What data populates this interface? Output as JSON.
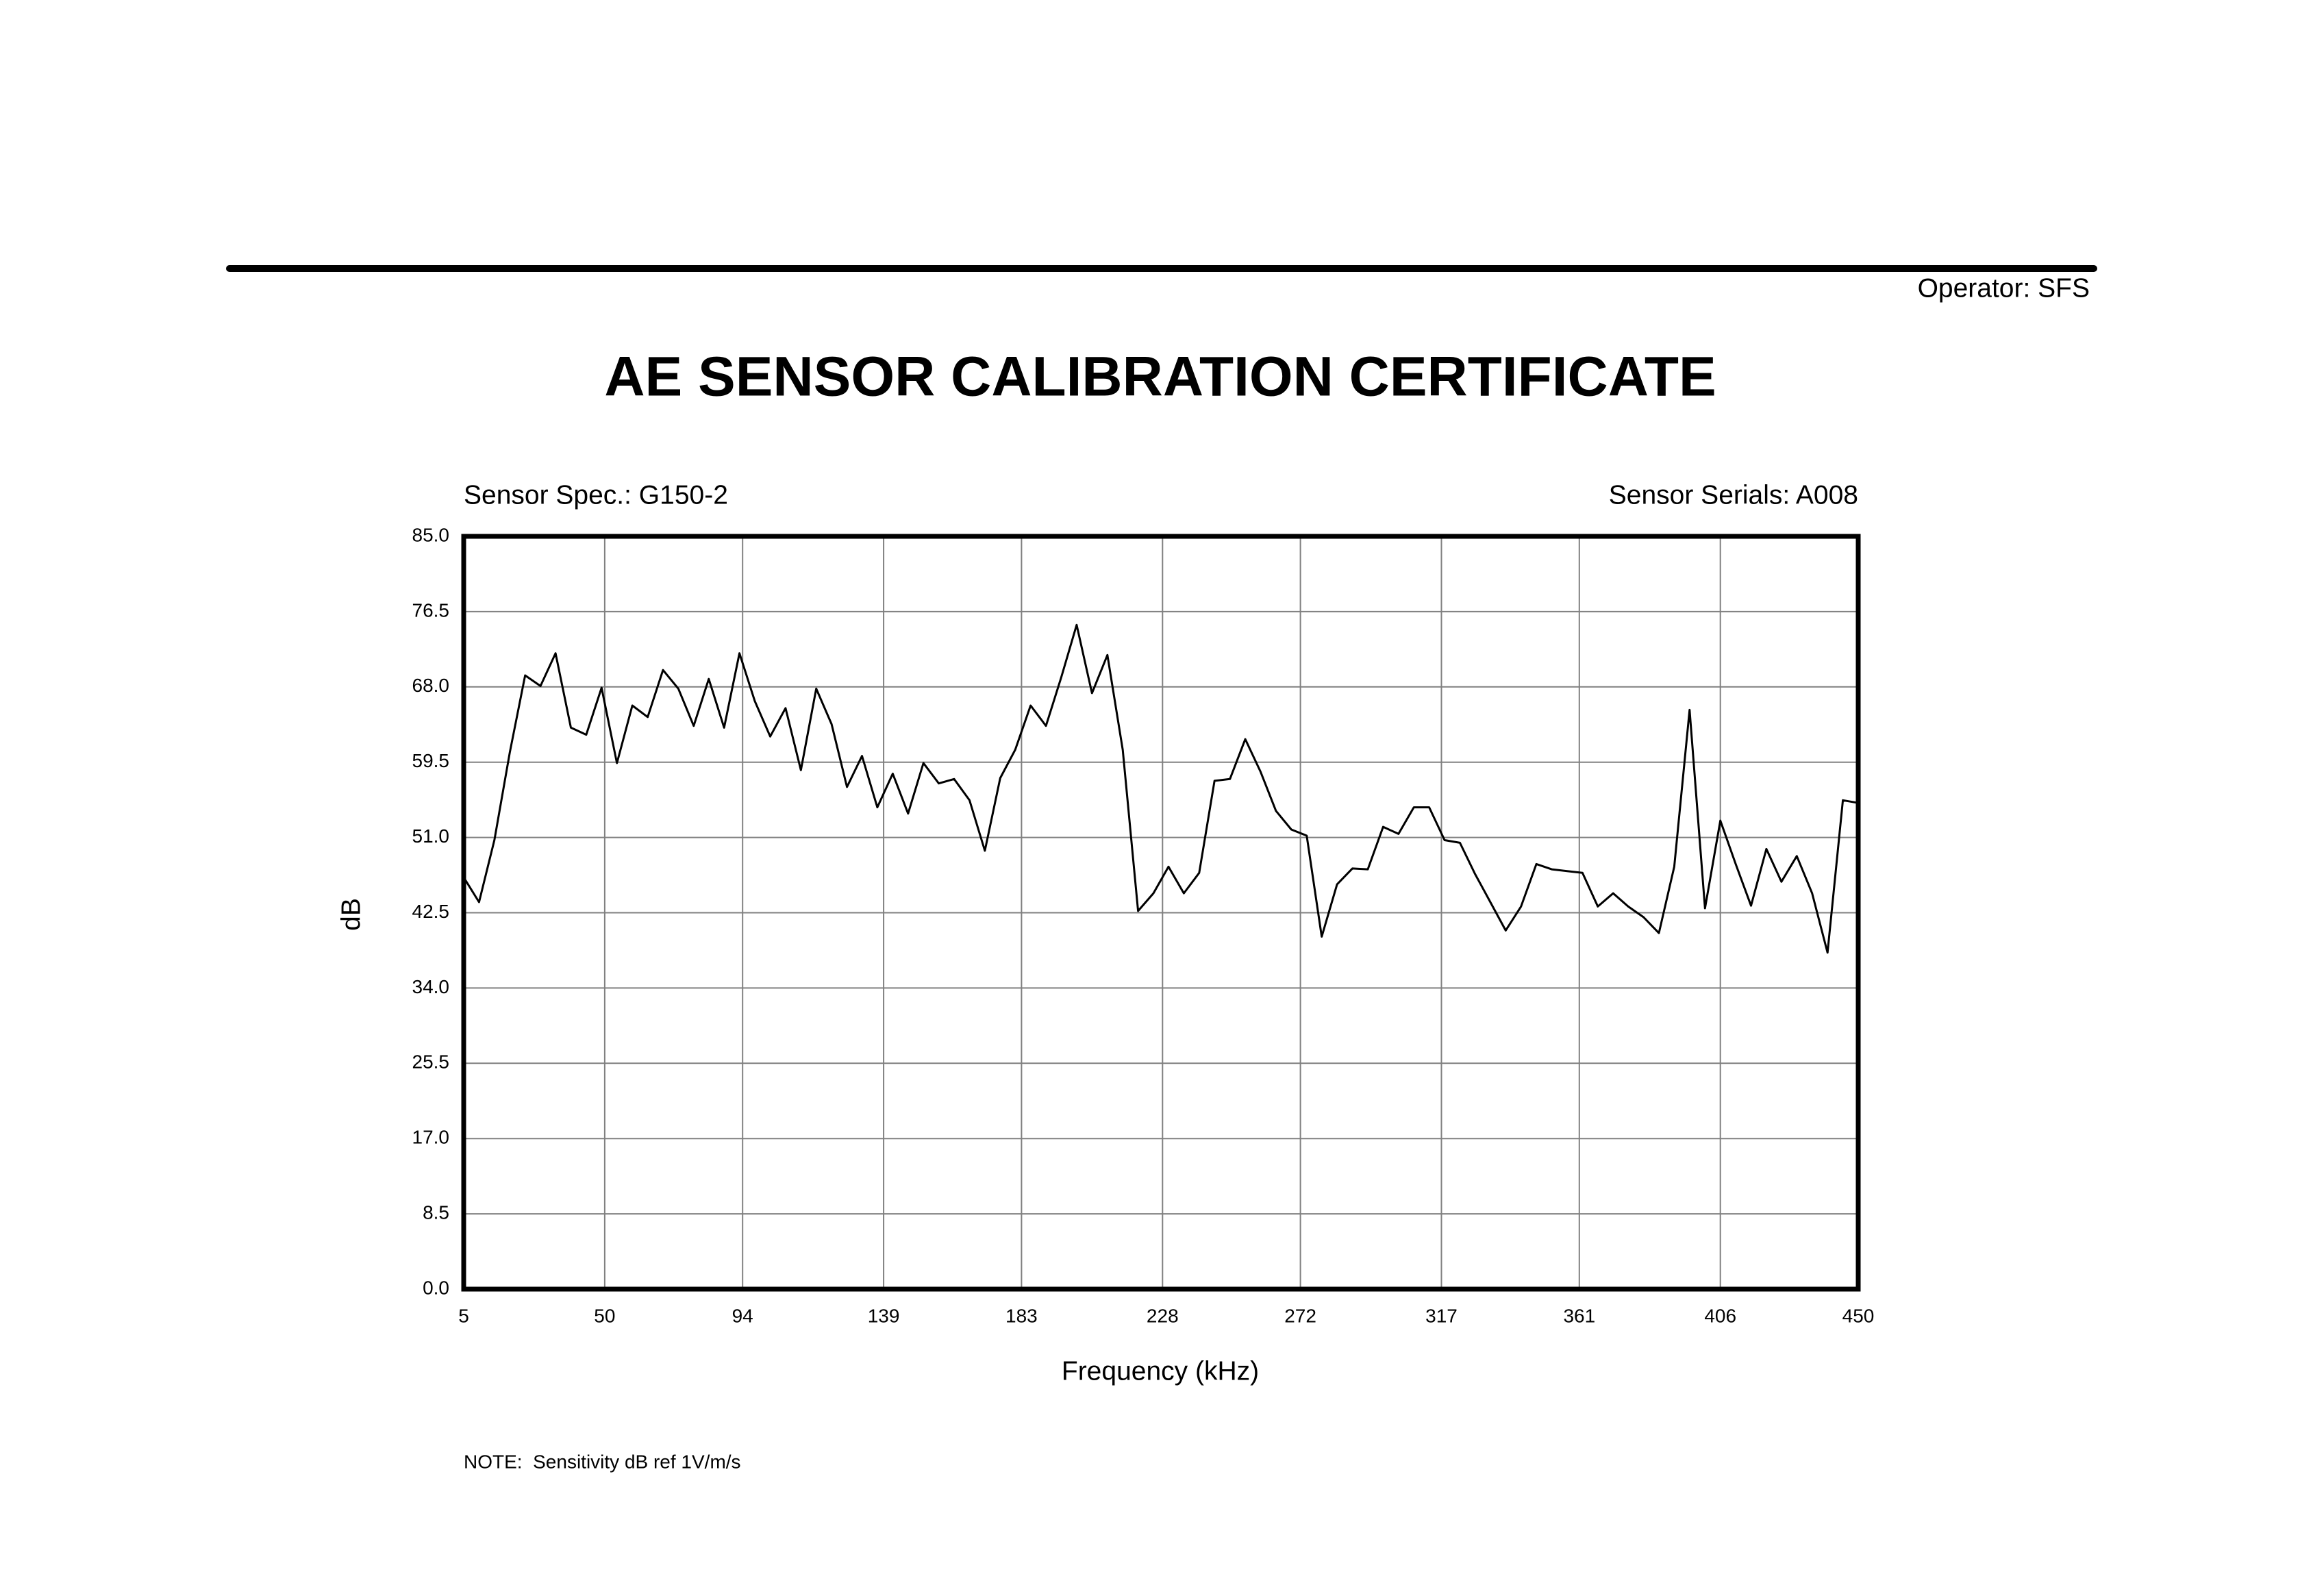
{
  "header": {
    "operator": "Operator: SFS"
  },
  "chart_data": {
    "type": "line",
    "title": "AE SENSOR CALIBRATION CERTIFICATE",
    "annotations": [
      "Sensor Spec.: G150-2",
      "Sensor Serials: A008"
    ],
    "x_label": "Frequency (kHz)",
    "y_label": "dB",
    "x": [
      5.0,
      9.9,
      14.8,
      19.7,
      24.6,
      29.5,
      34.3,
      39.2,
      44.1,
      49.0,
      53.9,
      58.8,
      63.7,
      68.6,
      73.5,
      78.4,
      83.2,
      88.1,
      93.0,
      97.9,
      102.8,
      107.7,
      112.6,
      117.5,
      122.4,
      127.3,
      132.1,
      137.0,
      141.9,
      146.8,
      151.7,
      156.6,
      161.5,
      166.4,
      171.3,
      176.2,
      181.0,
      185.9,
      190.8,
      195.7,
      200.6,
      205.5,
      210.4,
      215.3,
      220.2,
      225.1,
      229.9,
      234.8,
      239.7,
      244.6,
      249.5,
      254.4,
      259.3,
      264.2,
      269.1,
      274.0,
      278.8,
      283.7,
      288.6,
      293.5,
      298.4,
      303.3,
      308.2,
      313.1,
      318.0,
      322.9,
      327.7,
      332.6,
      337.5,
      342.4,
      347.3,
      352.2,
      357.1,
      362.0,
      366.9,
      371.8,
      376.6,
      381.5,
      386.4,
      391.3,
      396.2,
      401.1,
      406.0,
      410.9,
      415.8,
      420.7,
      425.5,
      430.4,
      435.3,
      440.2,
      445.1,
      450.0
    ],
    "values": [
      46.5,
      43.7,
      50.7,
      60.6,
      69.3,
      68.1,
      71.8,
      63.4,
      62.6,
      67.9,
      59.4,
      65.9,
      64.6,
      69.9,
      67.8,
      63.6,
      68.9,
      63.4,
      71.8,
      66.4,
      62.4,
      65.6,
      58.6,
      67.8,
      63.8,
      56.7,
      60.2,
      54.4,
      58.2,
      53.7,
      59.4,
      57.1,
      57.6,
      55.2,
      49.5,
      57.7,
      60.9,
      65.9,
      63.6,
      69.1,
      75.0,
      67.3,
      71.6,
      60.9,
      42.7,
      44.7,
      47.7,
      44.7,
      47.0,
      57.4,
      57.6,
      62.1,
      58.4,
      54.0,
      51.9,
      51.2,
      39.8,
      45.7,
      47.5,
      47.4,
      52.2,
      51.4,
      54.4,
      54.4,
      50.7,
      50.4,
      46.9,
      43.7,
      40.5,
      43.2,
      48.0,
      47.4,
      47.2,
      47.0,
      43.2,
      44.7,
      43.2,
      42.0,
      40.2,
      47.7,
      65.4,
      43.0,
      52.9,
      48.0,
      43.3,
      49.7,
      46.0,
      48.9,
      44.7,
      38.0,
      55.2,
      54.9
    ],
    "color": "#000000",
    "xlim": [
      5,
      450
    ],
    "xticks": [
      5,
      50,
      94,
      139,
      183,
      228,
      272,
      317,
      361,
      406,
      450
    ],
    "ylim": [
      0,
      85
    ],
    "yticks": [
      {
        "value": 0,
        "label": "0.0"
      },
      {
        "value": 8.5,
        "label": "8.5"
      },
      {
        "value": 17,
        "label": "17.0"
      },
      {
        "value": 25.5,
        "label": "25.5"
      },
      {
        "value": 34,
        "label": "34.0"
      },
      {
        "value": 42.5,
        "label": "42.5"
      },
      {
        "value": 51,
        "label": "51.0"
      },
      {
        "value": 59.5,
        "label": "59.5"
      },
      {
        "value": 68,
        "label": "68.0"
      },
      {
        "value": 76.5,
        "label": "76.5"
      },
      {
        "value": 85,
        "label": "85.0"
      }
    ],
    "grid": true
  },
  "footer": {
    "note": "NOTE:  Sensitivity dB ref 1V/m/s"
  }
}
